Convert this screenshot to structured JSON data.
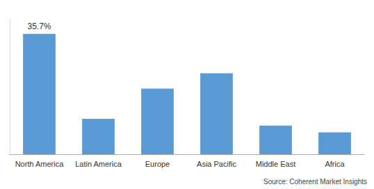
{
  "chart_data": {
    "type": "bar",
    "categories": [
      "North America",
      "Latin America",
      "Europe",
      "Asia Pacific",
      "Middle East",
      "Africa"
    ],
    "values": [
      35.7,
      10.5,
      19.5,
      24.0,
      8.5,
      6.5
    ],
    "color": "#5b9bd5",
    "ylim": [
      0,
      40
    ],
    "grid": false,
    "tick_labels": "x",
    "annotations": [
      {
        "text": "35.7%",
        "category": "North America",
        "value": 35.7
      },
      {
        "text": "Source: Coherent Market Insights"
      }
    ]
  }
}
